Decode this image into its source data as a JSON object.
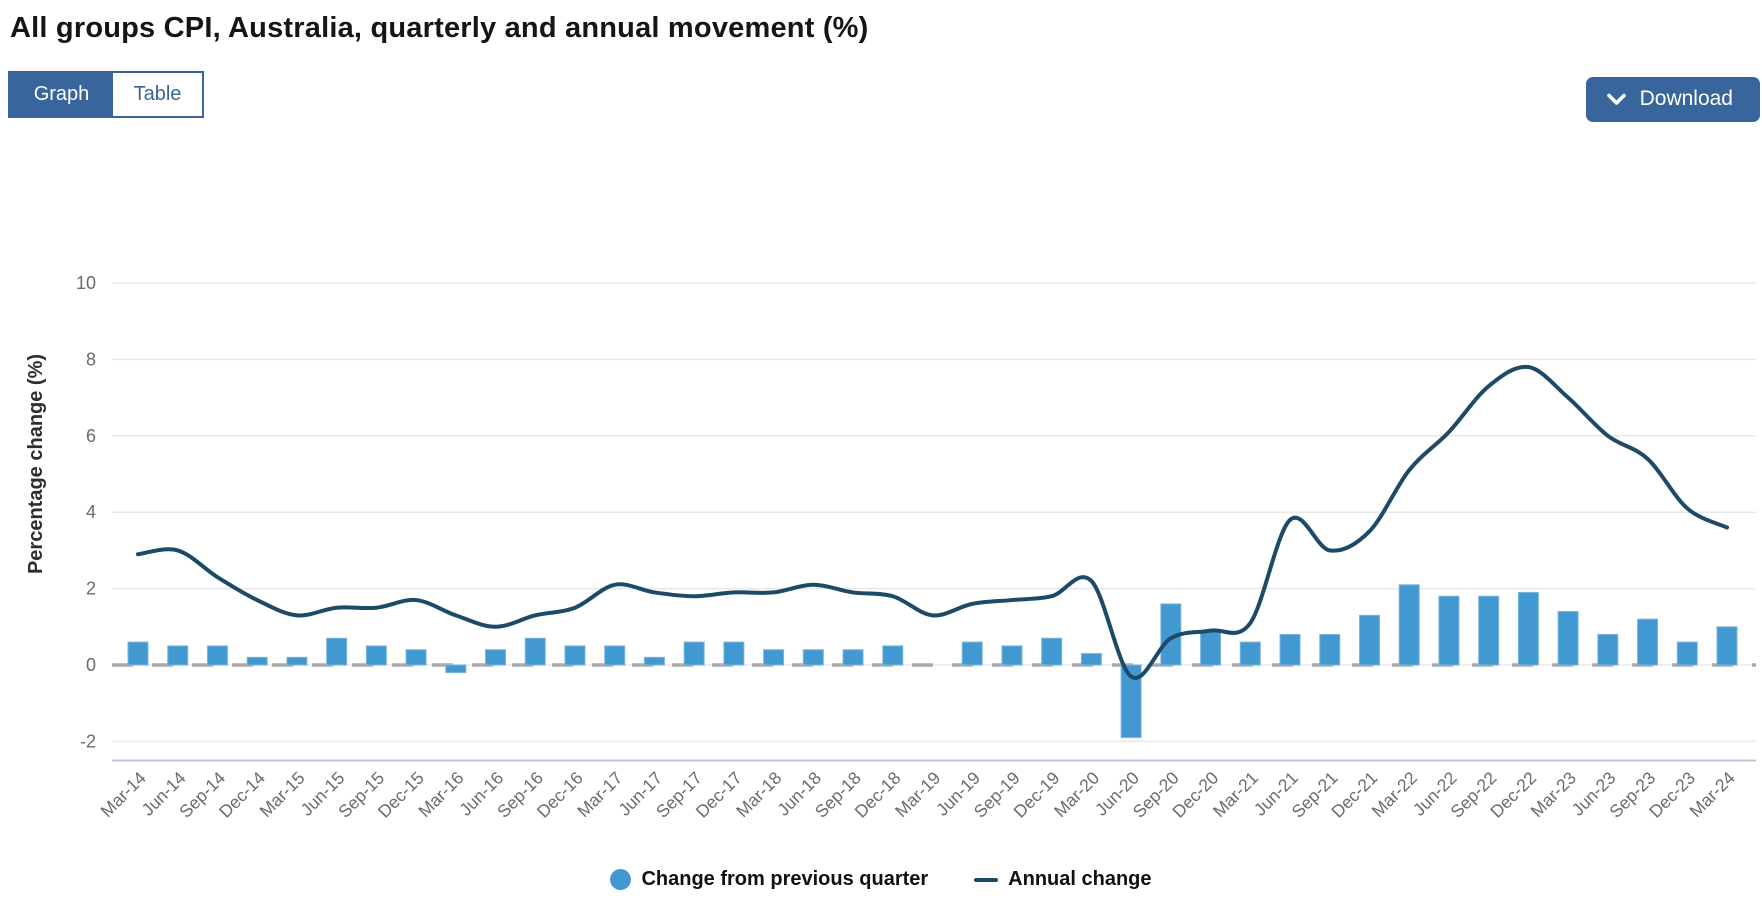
{
  "header": {
    "title": "All groups CPI, Australia, quarterly and annual movement (%)",
    "view_toggle": {
      "graph_label": "Graph",
      "table_label": "Table",
      "selected": "Graph"
    },
    "download_label": "Download",
    "download_icon": "chevron-down-icon"
  },
  "colors": {
    "accent_button_blue": "#38669c",
    "bar_blue": "#4299d1",
    "line_navy": "#1c4a68",
    "gridline_gray": "#e8e8eb",
    "zero_line_gray": "#ababab",
    "axis_border": "#bac9da",
    "tick_text_gray": "#6b6b6b"
  },
  "chart_data": {
    "type": "bar",
    "subtype": "bar+line combination",
    "title": "All groups CPI, Australia, quarterly and annual movement (%)",
    "xlabel": "",
    "ylabel": "Percentage change (%)",
    "yticks": [
      10,
      8,
      6,
      4,
      2,
      0,
      -2
    ],
    "ylim": [
      -2.5,
      10.5
    ],
    "grid": "horizontal gridlines on, dashed zero line",
    "legend_position": "bottom",
    "categories": [
      "Mar-14",
      "Jun-14",
      "Sep-14",
      "Dec-14",
      "Mar-15",
      "Jun-15",
      "Sep-15",
      "Dec-15",
      "Mar-16",
      "Jun-16",
      "Sep-16",
      "Dec-16",
      "Mar-17",
      "Jun-17",
      "Sep-17",
      "Dec-17",
      "Mar-18",
      "Jun-18",
      "Sep-18",
      "Dec-18",
      "Mar-19",
      "Jun-19",
      "Sep-19",
      "Dec-19",
      "Mar-20",
      "Jun-20",
      "Sep-20",
      "Dec-20",
      "Mar-21",
      "Jun-21",
      "Sep-21",
      "Dec-21",
      "Mar-22",
      "Jun-22",
      "Sep-22",
      "Dec-22",
      "Mar-23",
      "Jun-23",
      "Sep-23",
      "Dec-23",
      "Mar-24"
    ],
    "series": [
      {
        "name": "Change from previous quarter",
        "type": "bar",
        "color": "#4299d1",
        "values": [
          0.6,
          0.5,
          0.5,
          0.2,
          0.2,
          0.7,
          0.5,
          0.4,
          -0.2,
          0.4,
          0.7,
          0.5,
          0.5,
          0.2,
          0.6,
          0.6,
          0.4,
          0.4,
          0.4,
          0.5,
          0.0,
          0.6,
          0.5,
          0.7,
          0.3,
          -1.9,
          1.6,
          0.9,
          0.6,
          0.8,
          0.8,
          1.3,
          2.1,
          1.8,
          1.8,
          1.9,
          1.4,
          0.8,
          1.2,
          0.6,
          1.0
        ]
      },
      {
        "name": "Annual change",
        "type": "line",
        "color": "#1c4a68",
        "values": [
          2.9,
          3.0,
          2.3,
          1.7,
          1.3,
          1.5,
          1.5,
          1.7,
          1.3,
          1.0,
          1.3,
          1.5,
          2.1,
          1.9,
          1.8,
          1.9,
          1.9,
          2.1,
          1.9,
          1.8,
          1.3,
          1.6,
          1.7,
          1.8,
          2.2,
          -0.3,
          0.7,
          0.9,
          1.1,
          3.8,
          3.0,
          3.5,
          5.1,
          6.1,
          7.3,
          7.8,
          7.0,
          6.0,
          5.4,
          4.1,
          3.6
        ]
      }
    ]
  }
}
